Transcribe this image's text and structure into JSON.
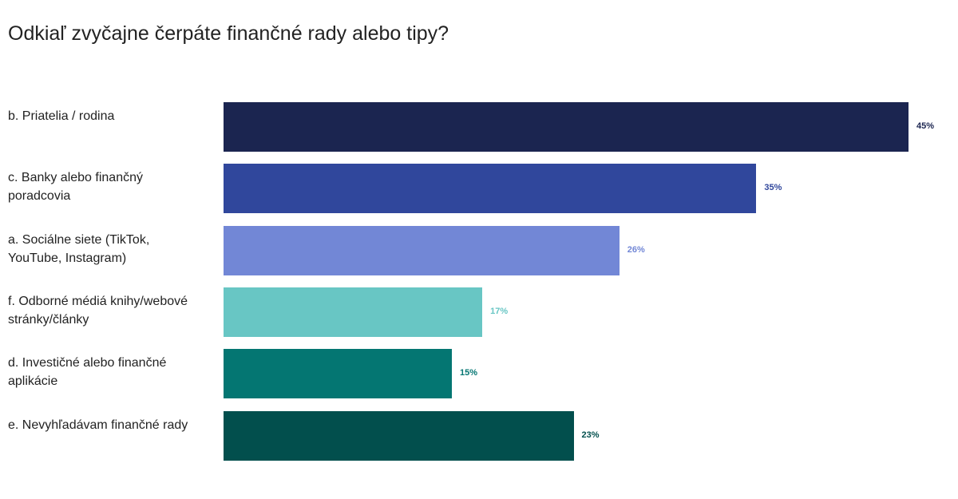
{
  "chart_data": {
    "type": "bar",
    "orientation": "horizontal",
    "title": "Odkiaľ zvyčajne čerpáte finančné rady alebo tipy?",
    "categories": [
      "b. Priatelia / rodina",
      "c. Banky alebo finančný poradcovia",
      "a. Sociálne siete (TikTok, YouTube, Instagram)",
      "f. Odborné médiá knihy/webové stránky/články",
      "d. Investičné alebo finančné aplikácie",
      "e. Nevyhľadávam finančné rady"
    ],
    "values": [
      45,
      35,
      26,
      17,
      15,
      23
    ],
    "value_labels": [
      "45%",
      "35%",
      "26%",
      "17%",
      "15%",
      "23%"
    ],
    "colors": [
      "#1b2550",
      "#30479c",
      "#7287d6",
      "#68c6c4",
      "#047672",
      "#024f4d"
    ]
  }
}
